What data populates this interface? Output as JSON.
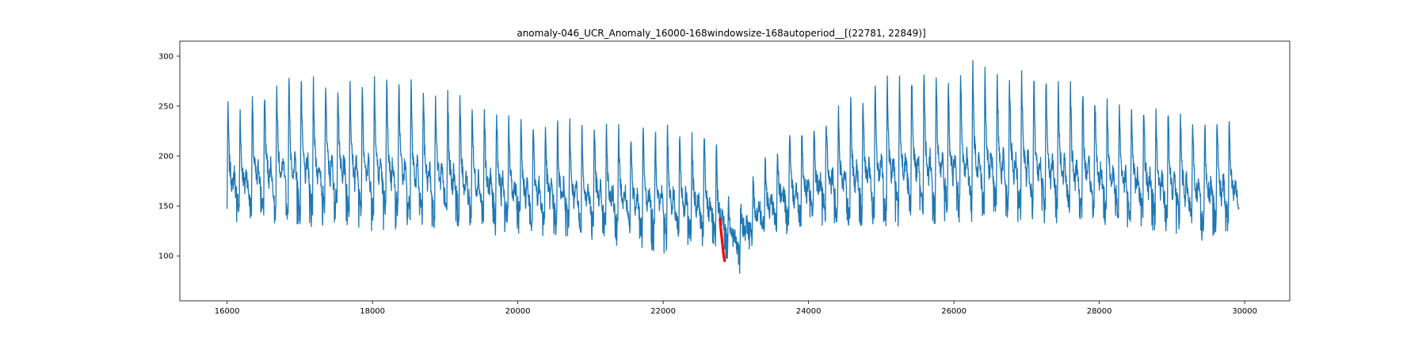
{
  "chart_data": {
    "type": "line",
    "title": "anomaly-046_UCR_Anomaly_16000-168windowsize-168autoperiod__[(22781, 22849)]",
    "xlabel": "",
    "ylabel": "",
    "xlim": [
      15350,
      30620
    ],
    "ylim": [
      55,
      315
    ],
    "x_ticks": [
      16000,
      18000,
      20000,
      22000,
      24000,
      26000,
      28000,
      30000
    ],
    "y_ticks": [
      100,
      150,
      200,
      250,
      300
    ],
    "grid": false,
    "legend": "none",
    "period": 168,
    "x_start": 16000,
    "x_end": 29920,
    "series": [
      {
        "color": "#1f77b4",
        "envelope": {
          "x": [
            16000,
            16200,
            16500,
            16800,
            17200,
            17600,
            18000,
            18400,
            18800,
            19200,
            19600,
            20000,
            20400,
            20800,
            21200,
            21600,
            22000,
            22400,
            22700,
            22900,
            23000,
            23100,
            23300,
            23600,
            24000,
            24400,
            24800,
            25200,
            25600,
            26000,
            26300,
            26600,
            27000,
            27400,
            27800,
            28200,
            28600,
            29000,
            29400,
            29700,
            29920
          ],
          "max": [
            255,
            250,
            270,
            278,
            285,
            280,
            290,
            283,
            272,
            262,
            250,
            237,
            236,
            238,
            235,
            228,
            236,
            228,
            225,
            160,
            150,
            158,
            190,
            215,
            235,
            250,
            270,
            285,
            290,
            288,
            300,
            290,
            290,
            280,
            270,
            262,
            255,
            250,
            238,
            250,
            225
          ],
          "min": [
            130,
            128,
            135,
            130,
            127,
            128,
            124,
            126,
            128,
            124,
            120,
            122,
            118,
            115,
            110,
            110,
            100,
            105,
            98,
            95,
            75,
            87,
            110,
            118,
            125,
            128,
            130,
            128,
            132,
            130,
            135,
            135,
            132,
            132,
            130,
            128,
            124,
            120,
            112,
            116,
            130
          ],
          "base": [
            145,
            145,
            150,
            150,
            148,
            148,
            145,
            145,
            143,
            142,
            140,
            138,
            135,
            132,
            130,
            128,
            125,
            122,
            118,
            115,
            100,
            110,
            125,
            135,
            142,
            145,
            148,
            148,
            150,
            150,
            152,
            152,
            150,
            150,
            148,
            146,
            142,
            140,
            135,
            135,
            140
          ]
        }
      },
      {
        "name": "anomaly",
        "color": "#ff0000",
        "x_range": [
          22781,
          22849
        ],
        "values": [
          138,
          128,
          122,
          115,
          108,
          102,
          97,
          94
        ]
      }
    ]
  }
}
